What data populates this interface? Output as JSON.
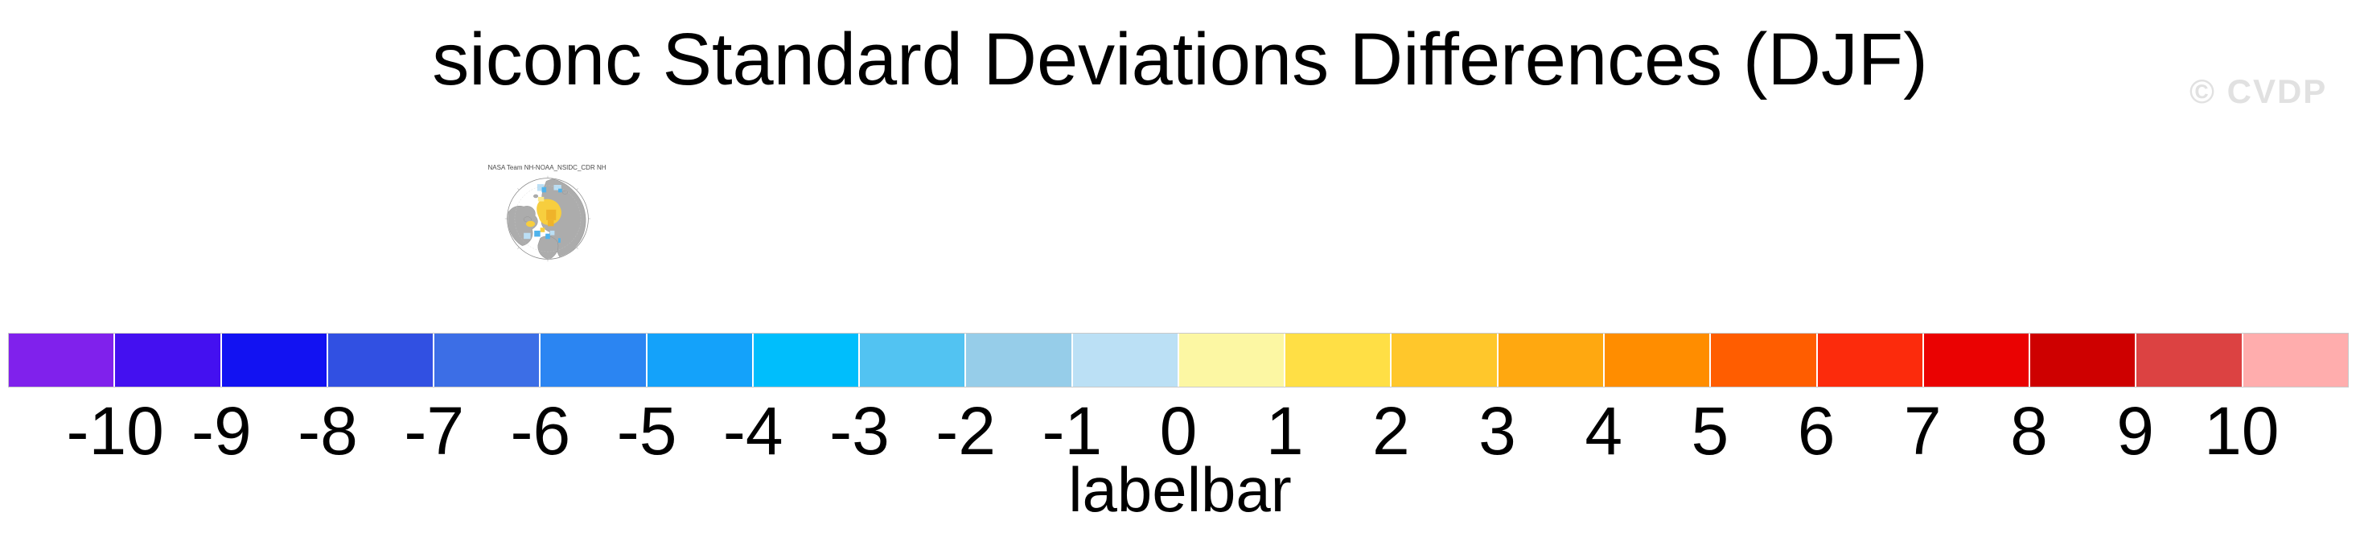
{
  "figure": {
    "title": "siconc Standard Deviations Differences (DJF)",
    "watermark": "© CVDP"
  },
  "minimap": {
    "title": "NASA Team NH-NOAA_NSIDC_CDR NH",
    "colors": {
      "ocean": "#FFFFFF",
      "outline": "#8A8A8A",
      "graticule": "#C8C8C8",
      "land": "#ACACAC",
      "land_edge": "#8C8C8C",
      "ice_yellow": "#F7CE3E",
      "ice_gold": "#EFB32A",
      "ice_light_yellow": "#FBE98A",
      "diff_blue": "#4FB3EC",
      "diff_light_blue": "#BBDFF5"
    }
  },
  "colorbar": {
    "title": "labelbar",
    "tick_labels": [
      "-10",
      "-9",
      "-8",
      "-7",
      "-6",
      "-5",
      "-4",
      "-3",
      "-2",
      "-1",
      "0",
      "1",
      "2",
      "3",
      "4",
      "5",
      "6",
      "7",
      "8",
      "9",
      "10"
    ],
    "colors": [
      "#8021EC",
      "#4410F0",
      "#1212F2",
      "#3150E2",
      "#3C6EE6",
      "#2B85F2",
      "#14A2FA",
      "#00BEFC",
      "#52C3F2",
      "#96CDE9",
      "#BBE0F5",
      "#FCF7A3",
      "#FFDF45",
      "#FFC72B",
      "#FFA810",
      "#FF8D00",
      "#FF5D00",
      "#FC2B0C",
      "#EA0202",
      "#CE0000",
      "#DC4242",
      "#FFADAD"
    ]
  },
  "chart_data": {
    "type": "heatmap",
    "title": "siconc Standard Deviations Differences (DJF)",
    "variable": "siconc",
    "statistic": "standard deviation difference",
    "season": "DJF",
    "panels": [
      {
        "label": "NASA Team NH-NOAA_NSIDC_CDR NH",
        "projection": "north polar stereographic",
        "description": "Arctic map thumbnail: gray land, white ocean, yellow positive differences near pole, blue negative differences in marginal seas"
      }
    ],
    "colorbar": {
      "title": "labelbar",
      "orientation": "horizontal",
      "levels": [
        -10,
        -9,
        -8,
        -7,
        -6,
        -5,
        -4,
        -3,
        -2,
        -1,
        0,
        1,
        2,
        3,
        4,
        5,
        6,
        7,
        8,
        9,
        10
      ],
      "n_boxes": 22,
      "colors": [
        "#8021EC",
        "#4410F0",
        "#1212F2",
        "#3150E2",
        "#3C6EE6",
        "#2B85F2",
        "#14A2FA",
        "#00BEFC",
        "#52C3F2",
        "#96CDE9",
        "#BBE0F5",
        "#FCF7A3",
        "#FFDF45",
        "#FFC72B",
        "#FFA810",
        "#FF8D00",
        "#FF5D00",
        "#FC2B0C",
        "#EA0202",
        "#CE0000",
        "#DC4242",
        "#FFADAD"
      ]
    }
  }
}
